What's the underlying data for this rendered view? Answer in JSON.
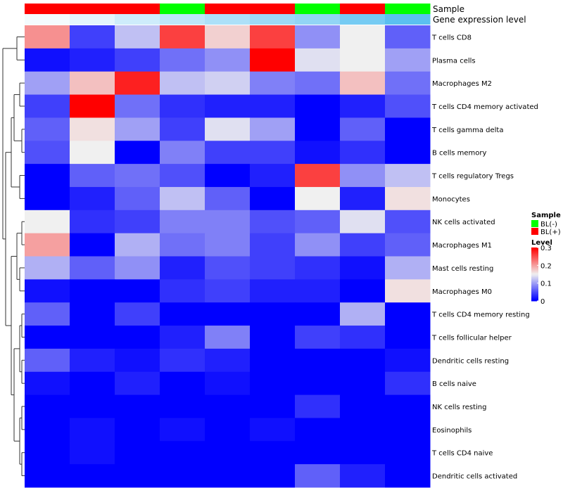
{
  "chart_data": {
    "type": "heatmap",
    "annotations": [
      {
        "name": "Sample",
        "values": [
          "BL(+)",
          "BL(+)",
          "BL(+)",
          "BL(-)",
          "BL(+)",
          "BL(+)",
          "BL(-)",
          "BL(+)",
          "BL(-)"
        ]
      },
      {
        "name": "Gene expression level",
        "values": [
          0.02,
          0.05,
          0.09,
          0.12,
          0.15,
          0.18,
          0.2,
          0.25,
          0.3
        ]
      }
    ],
    "rows": [
      "T cells CD8",
      "Plasma cells",
      "Macrophages M2",
      "T cells CD4 memory activated",
      "T cells gamma delta",
      "B cells memory",
      "T cells regulatory  Tregs",
      "Monocytes",
      "NK cells activated",
      "Macrophages M1",
      "Mast cells resting",
      "Macrophages M0",
      "T cells CD4 memory resting",
      "T cells follicular helper",
      "Dendritic cells resting",
      "B cells naive",
      "NK cells resting",
      "Eosinophils",
      "T cells CD4 naive",
      "Dendritic cells activated"
    ],
    "values": [
      [
        0.21,
        0.04,
        0.12,
        0.26,
        0.17,
        0.26,
        0.09,
        0.15,
        0.06
      ],
      [
        0.01,
        0.02,
        0.04,
        0.07,
        0.09,
        0.31,
        0.14,
        0.15,
        0.1
      ],
      [
        0.1,
        0.18,
        0.28,
        0.12,
        0.13,
        0.08,
        0.07,
        0.18,
        0.07
      ],
      [
        0.04,
        0.31,
        0.07,
        0.03,
        0.02,
        0.02,
        0.0,
        0.02,
        0.05
      ],
      [
        0.06,
        0.16,
        0.1,
        0.04,
        0.14,
        0.1,
        0.0,
        0.06,
        0.0
      ],
      [
        0.05,
        0.15,
        0.0,
        0.08,
        0.04,
        0.04,
        0.01,
        0.03,
        0.0
      ],
      [
        0.0,
        0.06,
        0.07,
        0.05,
        0.0,
        0.02,
        0.26,
        0.09,
        0.12
      ],
      [
        0.0,
        0.02,
        0.06,
        0.12,
        0.06,
        0.0,
        0.15,
        0.02,
        0.16
      ],
      [
        0.15,
        0.03,
        0.04,
        0.08,
        0.08,
        0.05,
        0.06,
        0.14,
        0.05
      ],
      [
        0.2,
        0.0,
        0.11,
        0.07,
        0.08,
        0.04,
        0.09,
        0.04,
        0.06
      ],
      [
        0.11,
        0.06,
        0.09,
        0.02,
        0.05,
        0.04,
        0.03,
        0.01,
        0.11
      ],
      [
        0.01,
        0.0,
        0.0,
        0.03,
        0.04,
        0.02,
        0.02,
        0.0,
        0.16
      ],
      [
        0.06,
        0.0,
        0.04,
        0.0,
        0.0,
        0.0,
        0.0,
        0.11,
        0.0
      ],
      [
        0.0,
        0.0,
        0.0,
        0.02,
        0.08,
        0.0,
        0.04,
        0.03,
        0.0
      ],
      [
        0.06,
        0.02,
        0.01,
        0.03,
        0.02,
        0.0,
        0.0,
        0.0,
        0.01
      ],
      [
        0.01,
        0.0,
        0.02,
        0.0,
        0.01,
        0.0,
        0.0,
        0.0,
        0.03
      ],
      [
        0.0,
        0.0,
        0.0,
        0.0,
        0.0,
        0.0,
        0.03,
        0.0,
        0.0
      ],
      [
        0.0,
        0.01,
        0.0,
        0.01,
        0.0,
        0.01,
        0.0,
        0.0,
        0.0
      ],
      [
        0.0,
        0.01,
        0.0,
        0.0,
        0.0,
        0.0,
        0.0,
        0.0,
        0.0
      ],
      [
        0.0,
        0.0,
        0.0,
        0.0,
        0.0,
        0.0,
        0.06,
        0.02,
        0.0
      ]
    ],
    "color_scale": {
      "min": 0,
      "mid": 0.15,
      "max": 0.3,
      "low": "#0000ff",
      "midColor": "#f0f0f0",
      "high": "#ff0000"
    },
    "annotation_scale": {
      "min": 0,
      "max": 0.3,
      "low": "#ffffff",
      "high": "#5bc0f0"
    },
    "sample_colors": {
      "BL(-)": "#00ff00",
      "BL(+)": "#ff0000"
    },
    "row_dendrogram": true,
    "legend": {
      "position": "right",
      "sample_title": "Sample",
      "sample_items": [
        "BL(-)",
        "BL(+)"
      ],
      "level_title": "Level",
      "level_ticks": [
        "0.3",
        "0.2",
        "0.1",
        "0"
      ],
      "level_tick_values": [
        0.3,
        0.2,
        0.1,
        0
      ]
    }
  }
}
